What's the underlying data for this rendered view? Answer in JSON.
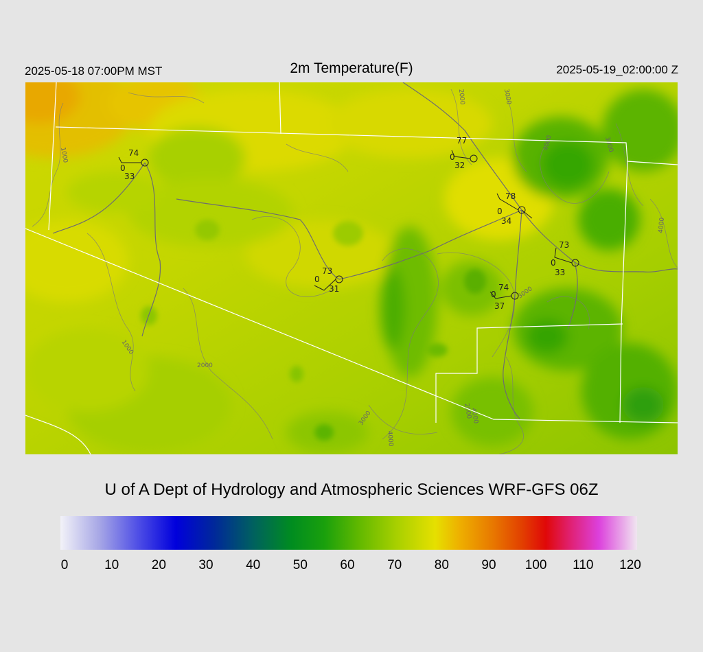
{
  "header": {
    "local_time": "2025-05-18 07:00PM MST",
    "title": "2m Temperature(F)",
    "utc_time": "2025-05-19_02:00:00 Z"
  },
  "credit": "U of A Dept of Hydrology and Atmospheric Sciences WRF-GFS 06Z",
  "colorbar": {
    "ticks": [
      "0",
      "10",
      "20",
      "30",
      "40",
      "50",
      "60",
      "70",
      "80",
      "90",
      "100",
      "110",
      "120"
    ],
    "stops": [
      {
        "value": 0,
        "color": "#f2f2f8"
      },
      {
        "value": 8,
        "color": "#a8a8e6"
      },
      {
        "value": 16,
        "color": "#5050e6"
      },
      {
        "value": 24,
        "color": "#0000dc"
      },
      {
        "value": 32,
        "color": "#00289a"
      },
      {
        "value": 40,
        "color": "#006060"
      },
      {
        "value": 48,
        "color": "#008c20"
      },
      {
        "value": 55,
        "color": "#1aa00c"
      },
      {
        "value": 62,
        "color": "#60b800"
      },
      {
        "value": 70,
        "color": "#a8d000"
      },
      {
        "value": 78,
        "color": "#e6e000"
      },
      {
        "value": 83,
        "color": "#eeb000"
      },
      {
        "value": 90,
        "color": "#e87800"
      },
      {
        "value": 96,
        "color": "#e24000"
      },
      {
        "value": 101,
        "color": "#e00808"
      },
      {
        "value": 106,
        "color": "#e02070"
      },
      {
        "value": 112,
        "color": "#dc40dc"
      },
      {
        "value": 120,
        "color": "#f0e6f0"
      }
    ]
  },
  "contours": [
    "1000",
    "1000",
    "2000",
    "2000",
    "2000",
    "3000",
    "3000",
    "3000",
    "3000",
    "4000",
    "4000",
    "4000",
    "4000"
  ],
  "stations": [
    {
      "name": "station-1",
      "temp": "74",
      "wind": "0",
      "dewpoint": "33"
    },
    {
      "name": "station-2",
      "temp": "77",
      "wind": "0",
      "dewpoint": "32"
    },
    {
      "name": "station-3",
      "temp": "78",
      "wind": "0",
      "dewpoint": "34"
    },
    {
      "name": "station-4",
      "temp": "73",
      "wind": "0",
      "dewpoint": "33"
    },
    {
      "name": "station-5",
      "temp": "73",
      "wind": "0",
      "dewpoint": "31"
    },
    {
      "name": "station-6",
      "temp": "74",
      "wind": "0",
      "dewpoint": "37"
    }
  ]
}
